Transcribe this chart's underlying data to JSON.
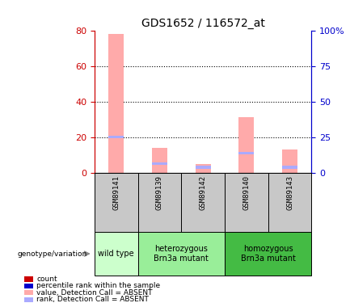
{
  "title": "GDS1652 / 116572_at",
  "samples": [
    "GSM89141",
    "GSM89139",
    "GSM89142",
    "GSM89140",
    "GSM89143"
  ],
  "pink_values": [
    78,
    14,
    5,
    31,
    13
  ],
  "blue_ranks": [
    20,
    5,
    3,
    11,
    3
  ],
  "ylim_left": [
    0,
    80
  ],
  "ylim_right": [
    0,
    100
  ],
  "yticks_left": [
    0,
    20,
    40,
    60,
    80
  ],
  "yticks_right": [
    0,
    25,
    50,
    75,
    100
  ],
  "ytick_labels_right": [
    "0",
    "25",
    "50",
    "75",
    "100%"
  ],
  "grid_lines": [
    20,
    40,
    60
  ],
  "pink_color": "#ffaaaa",
  "blue_color": "#aaaaff",
  "left_axis_color": "#cc0000",
  "right_axis_color": "#0000cc",
  "bar_width": 0.35,
  "sample_label_bg": "#c8c8c8",
  "group_data": [
    {
      "xstart": 0,
      "xend": 1,
      "label": "wild type",
      "color": "#ccffcc"
    },
    {
      "xstart": 1,
      "xend": 3,
      "label": "heterozygous\nBrn3a mutant",
      "color": "#99ee99"
    },
    {
      "xstart": 3,
      "xend": 5,
      "label": "homozygous\nBrn3a mutant",
      "color": "#44bb44"
    }
  ],
  "legend_colors": [
    "#cc0000",
    "#0000cc",
    "#ffaaaa",
    "#aaaaff"
  ],
  "legend_texts": [
    "count",
    "percentile rank within the sample",
    "value, Detection Call = ABSENT",
    "rank, Detection Call = ABSENT"
  ]
}
